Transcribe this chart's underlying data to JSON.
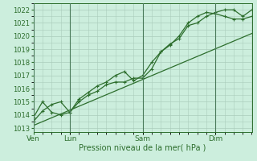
{
  "bg_color": "#cceedd",
  "grid_color": "#aaccbb",
  "line_color": "#2d6e2d",
  "xlabel": "Pression niveau de la mer( hPa )",
  "ylim_low": 1012.7,
  "ylim_high": 1022.5,
  "yticks": [
    1013,
    1014,
    1015,
    1016,
    1017,
    1018,
    1019,
    1020,
    1021,
    1022
  ],
  "day_positions": [
    0.0,
    0.333,
    1.0,
    1.667
  ],
  "day_labels": [
    "Ven",
    "Lun",
    "Sam",
    "Dim"
  ],
  "xlim": [
    0.0,
    2.0
  ],
  "series_straight": {
    "x": [
      0.0,
      2.0
    ],
    "y": [
      1013.2,
      1020.2
    ]
  },
  "series_main": {
    "x": [
      0.0,
      0.083,
      0.167,
      0.25,
      0.333,
      0.417,
      0.5,
      0.583,
      0.667,
      0.75,
      0.833,
      0.917,
      1.0,
      1.083,
      1.167,
      1.25,
      1.333,
      1.417,
      1.5,
      1.583,
      1.667,
      1.75,
      1.833,
      1.917,
      2.0
    ],
    "y": [
      1013.5,
      1014.3,
      1014.8,
      1015.0,
      1014.2,
      1015.2,
      1015.7,
      1016.2,
      1016.5,
      1017.0,
      1017.3,
      1016.6,
      1017.0,
      1018.0,
      1018.8,
      1019.4,
      1019.8,
      1020.8,
      1021.0,
      1021.5,
      1021.8,
      1022.0,
      1022.0,
      1021.5,
      1022.0
    ]
  },
  "series_bumpy": {
    "x": [
      0.0,
      0.083,
      0.167,
      0.25,
      0.333,
      0.417,
      0.5,
      0.583,
      0.667,
      0.75,
      0.833,
      0.917,
      1.0,
      1.083,
      1.167,
      1.25,
      1.333,
      1.417,
      1.5,
      1.583,
      1.667,
      1.75,
      1.833,
      1.917,
      2.0
    ],
    "y": [
      1013.8,
      1015.0,
      1014.2,
      1014.0,
      1014.2,
      1015.0,
      1015.5,
      1015.8,
      1016.3,
      1016.5,
      1016.5,
      1016.8,
      1016.8,
      1017.5,
      1018.8,
      1019.3,
      1020.0,
      1021.0,
      1021.5,
      1021.8,
      1021.7,
      1021.5,
      1021.3,
      1021.3,
      1021.5
    ]
  }
}
